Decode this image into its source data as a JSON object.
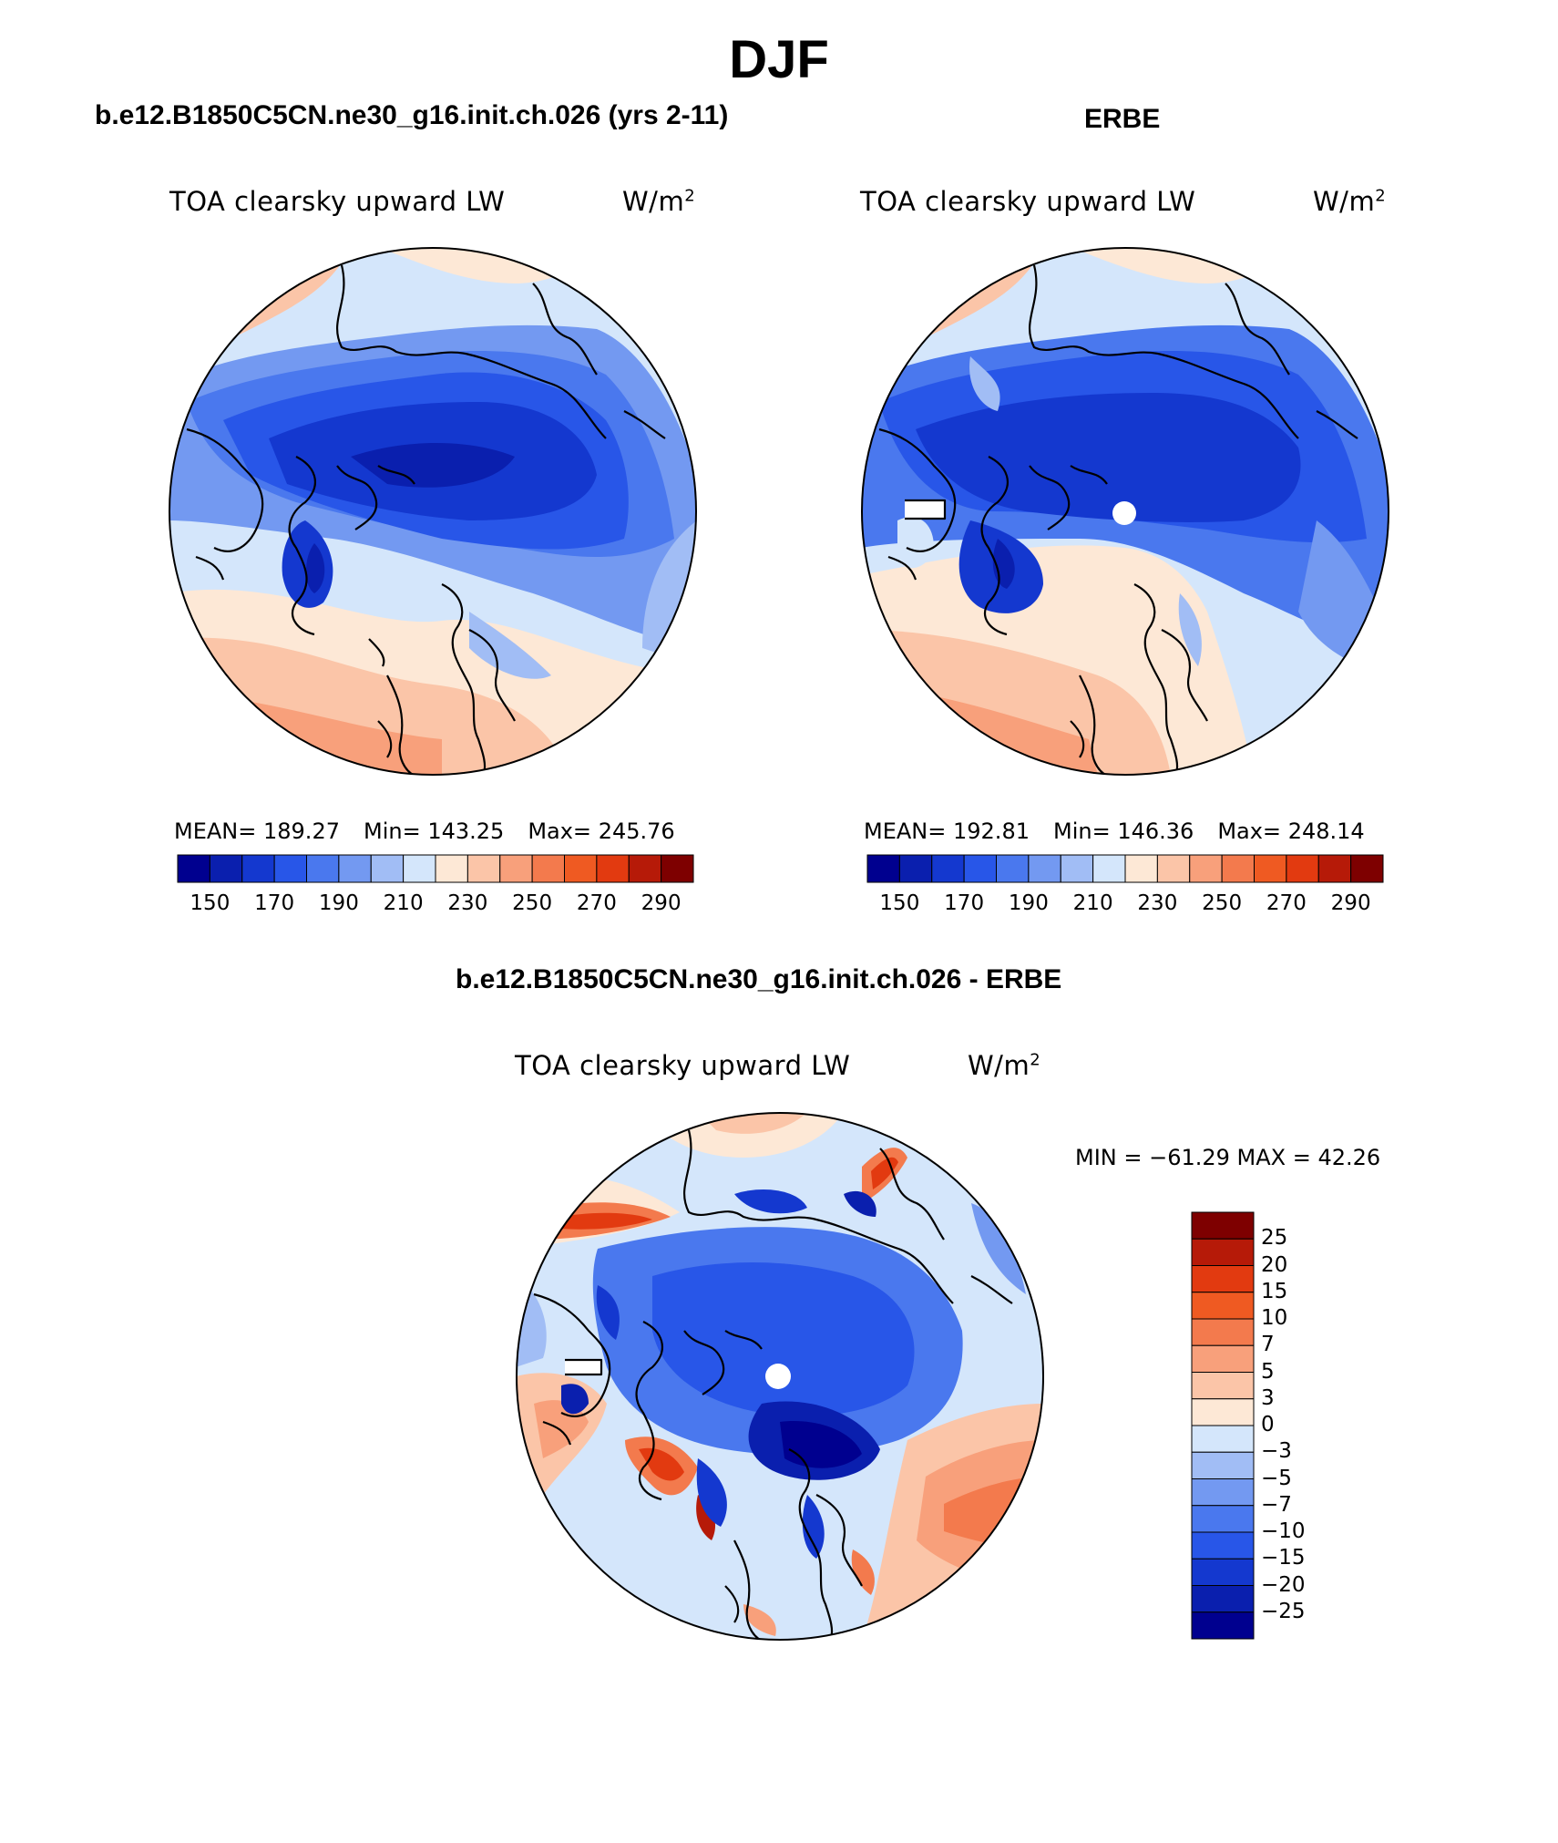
{
  "figure": {
    "title": "DJF",
    "difference_title": "b.e12.B1850C5CN.ne30_g16.init.ch.026 - ERBE"
  },
  "panels": [
    {
      "heading": "b.e12.B1850C5CN.ne30_g16.init.ch.026 (yrs 2-11)",
      "variable": "TOA clearsky upward LW",
      "units": "W/m",
      "units_exp": "2",
      "mean_label": "MEAN=",
      "mean": "189.27",
      "min_label": "Min=",
      "min": "143.25",
      "max_label": "Max=",
      "max": "245.76"
    },
    {
      "heading": "ERBE",
      "variable": "TOA clearsky upward LW",
      "units": "W/m",
      "units_exp": "2",
      "mean_label": "MEAN=",
      "mean": "192.81",
      "min_label": "Min=",
      "min": "146.36",
      "max_label": "Max=",
      "max": "248.14"
    }
  ],
  "difference": {
    "variable": "TOA clearsky upward LW",
    "units": "W/m",
    "units_exp": "2",
    "minmax_text": "MIN = −61.29 MAX =   42.26"
  },
  "colorbar_top": {
    "colors": [
      "#00008f",
      "#0a1fae",
      "#1438cf",
      "#2856e8",
      "#4a78ee",
      "#7399f1",
      "#a1bdf5",
      "#d4e6fb",
      "#fde8d6",
      "#fbc5a8",
      "#f8a07b",
      "#f37a4d",
      "#ef5a22",
      "#e23a10",
      "#b61a08",
      "#7e0000"
    ],
    "tick_labels": [
      "150",
      "170",
      "190",
      "210",
      "230",
      "250",
      "270",
      "290"
    ]
  },
  "colorbar_diff": {
    "colors": [
      "#7e0000",
      "#b61a08",
      "#e23a10",
      "#ef5a22",
      "#f37a4d",
      "#f8a07b",
      "#fbc5a8",
      "#fde8d6",
      "#d4e6fb",
      "#a1bdf5",
      "#7399f1",
      "#4a78ee",
      "#2856e8",
      "#1438cf",
      "#0a1fae",
      "#00008f"
    ],
    "tick_labels": [
      "25",
      "20",
      "15",
      "10",
      "7",
      "5",
      "3",
      "0",
      "−3",
      "−5",
      "−7",
      "−10",
      "−15",
      "−20",
      "−25"
    ]
  }
}
